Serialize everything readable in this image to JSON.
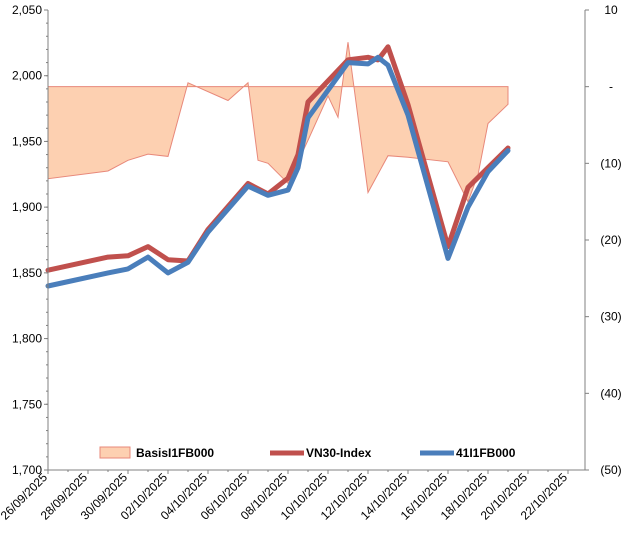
{
  "chart_data": {
    "type": "line",
    "title": "",
    "colors": {
      "basis_fill": "#fdd0b1",
      "basis_stroke": "#e8887a",
      "vn30": "#c0504d",
      "futures": "#4a7ebb"
    },
    "x_tick_labels": [
      "26/09/2025",
      "28/09/2025",
      "30/09/2025",
      "02/10/2025",
      "04/10/2025",
      "06/10/2025",
      "08/10/2025",
      "10/10/2025",
      "12/10/2025",
      "14/10/2025",
      "16/10/2025",
      "18/10/2025",
      "20/10/2025",
      "22/10/2025"
    ],
    "left_axis": {
      "ylim": [
        1700,
        2050
      ],
      "ticks": [
        "1,700",
        "1,750",
        "1,800",
        "1,850",
        "1,900",
        "1,950",
        "2,000",
        "2,050"
      ]
    },
    "right_axis": {
      "ylim": [
        -50,
        10
      ],
      "ticks": [
        "(50)",
        "(40)",
        "(30)",
        "(20)",
        "(10)",
        "-",
        "10"
      ]
    },
    "series": [
      {
        "name": "BasisI1FB000",
        "axis": "right",
        "kind": "area",
        "x": [
          0,
          3,
          4,
          5,
          6,
          7,
          9,
          10,
          10.5,
          11,
          12,
          13,
          14,
          14.5,
          15,
          16,
          17,
          18,
          20,
          21,
          21.5,
          22,
          23
        ],
        "values": [
          -12,
          -11,
          -9.6,
          -8.8,
          -9.1,
          0.5,
          -1.8,
          0.5,
          -9.6,
          -10,
          -12.6,
          -7,
          -1.2,
          -4,
          5.8,
          -13.8,
          -9,
          -9.2,
          -9.8,
          -15,
          -11.5,
          -4.8,
          -2.3
        ]
      },
      {
        "name": "VN30-Index",
        "axis": "left",
        "kind": "line",
        "x": [
          0,
          3,
          4,
          5,
          6,
          7,
          8,
          10,
          11,
          12,
          12.5,
          13,
          15,
          16,
          16.5,
          17,
          18,
          20,
          21,
          22,
          23
        ],
        "values": [
          1852,
          1862,
          1863,
          1870,
          1860,
          1859,
          1883,
          1918,
          1910,
          1922,
          1940,
          1980,
          2012,
          2014,
          2012,
          2022,
          1978,
          1870,
          1915,
          1930,
          1945
        ]
      },
      {
        "name": "41I1FB000",
        "axis": "left",
        "kind": "line",
        "x": [
          0,
          3,
          4,
          5,
          6,
          7,
          8,
          10,
          11,
          12,
          12.5,
          13,
          15,
          16,
          16.5,
          17,
          18,
          20,
          21,
          22,
          23
        ],
        "values": [
          1840,
          1850,
          1853,
          1862,
          1850,
          1858,
          1881,
          1916,
          1909,
          1913,
          1930,
          1968,
          2010,
          2009,
          2014,
          2008,
          1970,
          1861,
          1900,
          1927,
          1943
        ]
      }
    ]
  }
}
